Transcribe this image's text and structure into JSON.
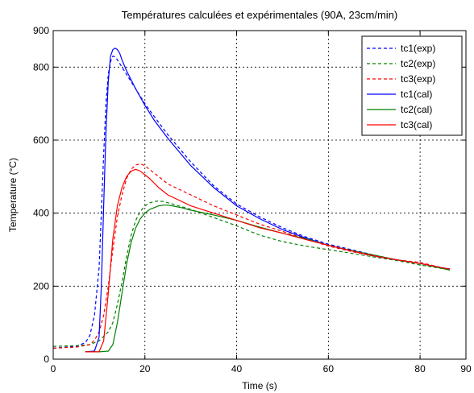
{
  "chart_data": {
    "type": "line",
    "title": "Températures calculées et expérimentales (90A, 23cm/min)",
    "xlabel": "Time (s)",
    "ylabel": "Temperature (°C)",
    "xlim": [
      0,
      90
    ],
    "ylim": [
      0,
      900
    ],
    "xticks": [
      0,
      20,
      40,
      60,
      80,
      90
    ],
    "yticks": [
      0,
      200,
      400,
      600,
      800,
      900
    ],
    "grid": true,
    "legend_position": "top-right",
    "series": [
      {
        "name": "tc1(exp)",
        "color": "#0000ff",
        "dash": "dashed",
        "x": [
          0,
          5,
          7,
          8,
          9,
          10,
          10.5,
          11,
          11.5,
          12,
          12.5,
          13,
          13.5,
          14,
          15,
          16,
          18,
          20,
          22,
          25,
          30,
          35,
          40,
          45,
          50,
          55,
          60,
          65,
          70,
          75,
          80,
          85,
          86.5
        ],
        "y": [
          30,
          35,
          45,
          65,
          120,
          250,
          400,
          560,
          700,
          780,
          815,
          830,
          828,
          820,
          800,
          780,
          740,
          700,
          665,
          615,
          540,
          475,
          425,
          390,
          360,
          335,
          315,
          300,
          285,
          272,
          262,
          250,
          247
        ]
      },
      {
        "name": "tc2(exp)",
        "color": "#008000",
        "dash": "dashed",
        "x": [
          0,
          5,
          8,
          10,
          12,
          13,
          14,
          15,
          16,
          17,
          18,
          19,
          20,
          21,
          22,
          23,
          24,
          26,
          30,
          35,
          40,
          45,
          50,
          55,
          60,
          65,
          70,
          75,
          80,
          85,
          86.5
        ],
        "y": [
          35,
          37,
          40,
          50,
          75,
          100,
          150,
          210,
          280,
          340,
          380,
          405,
          420,
          428,
          432,
          433,
          432,
          425,
          410,
          388,
          365,
          340,
          322,
          310,
          300,
          290,
          280,
          270,
          258,
          248,
          245
        ]
      },
      {
        "name": "tc3(exp)",
        "color": "#ff0000",
        "dash": "dashed",
        "x": [
          0,
          5,
          8,
          9,
          10,
          11,
          12,
          13,
          14,
          15,
          16,
          17,
          18,
          19,
          20,
          21,
          23,
          25,
          30,
          35,
          40,
          45,
          50,
          55,
          60,
          65,
          70,
          75,
          80,
          85,
          86.5
        ],
        "y": [
          30,
          33,
          40,
          52,
          75,
          120,
          200,
          300,
          390,
          450,
          495,
          520,
          532,
          535,
          530,
          520,
          500,
          480,
          450,
          420,
          395,
          370,
          350,
          330,
          310,
          295,
          282,
          272,
          265,
          250,
          247
        ]
      },
      {
        "name": "tc1(cal)",
        "color": "#0000ff",
        "dash": "solid",
        "x": [
          7,
          9,
          10,
          10.5,
          11,
          11.5,
          12,
          12.5,
          13,
          13.5,
          14,
          14.5,
          15,
          16,
          18,
          20,
          22,
          25,
          30,
          35,
          40,
          45,
          50,
          55,
          60,
          65,
          70,
          75,
          80,
          85,
          86.5
        ],
        "y": [
          20,
          22,
          60,
          200,
          420,
          620,
          760,
          830,
          848,
          852,
          848,
          838,
          820,
          790,
          740,
          695,
          655,
          605,
          530,
          470,
          420,
          385,
          355,
          332,
          312,
          297,
          283,
          272,
          262,
          250,
          247
        ]
      },
      {
        "name": "tc2(cal)",
        "color": "#008000",
        "dash": "solid",
        "x": [
          7,
          10,
          12,
          13,
          14,
          15,
          16,
          17,
          18,
          19,
          20,
          21,
          22,
          23,
          24,
          25,
          26,
          28,
          30,
          35,
          40,
          45,
          50,
          55,
          60,
          65,
          70,
          75,
          80,
          85,
          86.5
        ],
        "y": [
          20,
          20,
          22,
          40,
          100,
          180,
          260,
          320,
          360,
          385,
          400,
          410,
          415,
          420,
          422,
          422,
          420,
          415,
          408,
          395,
          380,
          362,
          345,
          330,
          312,
          298,
          285,
          272,
          262,
          248,
          244
        ]
      },
      {
        "name": "tc3(cal)",
        "color": "#ff0000",
        "dash": "solid",
        "x": [
          7,
          10,
          11,
          12,
          13,
          14,
          15,
          16,
          17,
          18,
          19,
          20,
          21,
          23,
          25,
          30,
          35,
          40,
          45,
          50,
          55,
          60,
          65,
          70,
          75,
          80,
          85,
          86.5
        ],
        "y": [
          20,
          20,
          50,
          180,
          330,
          420,
          470,
          500,
          515,
          520,
          515,
          505,
          495,
          470,
          450,
          420,
          400,
          380,
          360,
          345,
          328,
          312,
          297,
          283,
          272,
          262,
          250,
          247
        ]
      }
    ]
  }
}
